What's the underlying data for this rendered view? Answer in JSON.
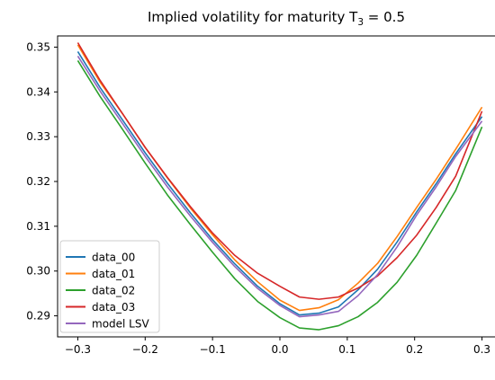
{
  "chart_data": {
    "type": "line",
    "title_main": "Implied volatility for maturity T",
    "title_sub": "3",
    "title_tail": " = 0.5",
    "xlim": [
      -0.33,
      0.33
    ],
    "ylim": [
      0.2853,
      0.3525
    ],
    "xticks": [
      -0.3,
      -0.2,
      -0.1,
      0.0,
      0.1,
      0.2,
      0.3
    ],
    "xtick_labels": [
      "−0.3",
      "−0.2",
      "−0.1",
      "0.0",
      "0.1",
      "0.2",
      "0.3"
    ],
    "yticks": [
      0.29,
      0.3,
      0.31,
      0.32,
      0.33,
      0.34,
      0.35
    ],
    "ytick_labels": [
      "0.29",
      "0.30",
      "0.31",
      "0.32",
      "0.33",
      "0.34",
      "0.35"
    ],
    "grid": false,
    "legend_position": "lower-left",
    "x": [
      -0.3,
      -0.267,
      -0.233,
      -0.2,
      -0.167,
      -0.133,
      -0.1,
      -0.067,
      -0.033,
      0.0,
      0.029,
      0.058,
      0.087,
      0.116,
      0.145,
      0.174,
      0.203,
      0.232,
      0.261,
      0.3
    ],
    "series": [
      {
        "name": "data_00",
        "color": "#1f77b4",
        "values": [
          0.349,
          0.341,
          0.3336,
          0.3264,
          0.3196,
          0.313,
          0.307,
          0.3016,
          0.2966,
          0.2927,
          0.2902,
          0.2906,
          0.292,
          0.2958,
          0.3004,
          0.3065,
          0.3132,
          0.3195,
          0.3262,
          0.3345
        ]
      },
      {
        "name": "data_01",
        "color": "#ff7f0e",
        "values": [
          0.3505,
          0.3422,
          0.335,
          0.3276,
          0.3208,
          0.3141,
          0.3081,
          0.3025,
          0.2976,
          0.2935,
          0.2912,
          0.2918,
          0.2936,
          0.2973,
          0.3017,
          0.3077,
          0.3142,
          0.3205,
          0.3272,
          0.3366
        ]
      },
      {
        "name": "data_02",
        "color": "#2ca02c",
        "values": [
          0.347,
          0.339,
          0.3315,
          0.3241,
          0.317,
          0.3104,
          0.3042,
          0.2983,
          0.2932,
          0.2896,
          0.2873,
          0.2869,
          0.2878,
          0.2898,
          0.293,
          0.2975,
          0.3035,
          0.3107,
          0.318,
          0.3322
        ]
      },
      {
        "name": "data_03",
        "color": "#d62728",
        "values": [
          0.351,
          0.3426,
          0.335,
          0.3276,
          0.3209,
          0.3144,
          0.3085,
          0.3035,
          0.2995,
          0.2966,
          0.2942,
          0.2937,
          0.2942,
          0.2962,
          0.2989,
          0.303,
          0.308,
          0.3142,
          0.3212,
          0.3357
        ]
      },
      {
        "name": "model LSV",
        "color": "#9467bd",
        "values": [
          0.348,
          0.3402,
          0.3328,
          0.3256,
          0.3188,
          0.3123,
          0.3064,
          0.301,
          0.2961,
          0.2923,
          0.2898,
          0.2902,
          0.291,
          0.2945,
          0.2992,
          0.3054,
          0.3125,
          0.3188,
          0.3256,
          0.3335
        ]
      }
    ]
  }
}
